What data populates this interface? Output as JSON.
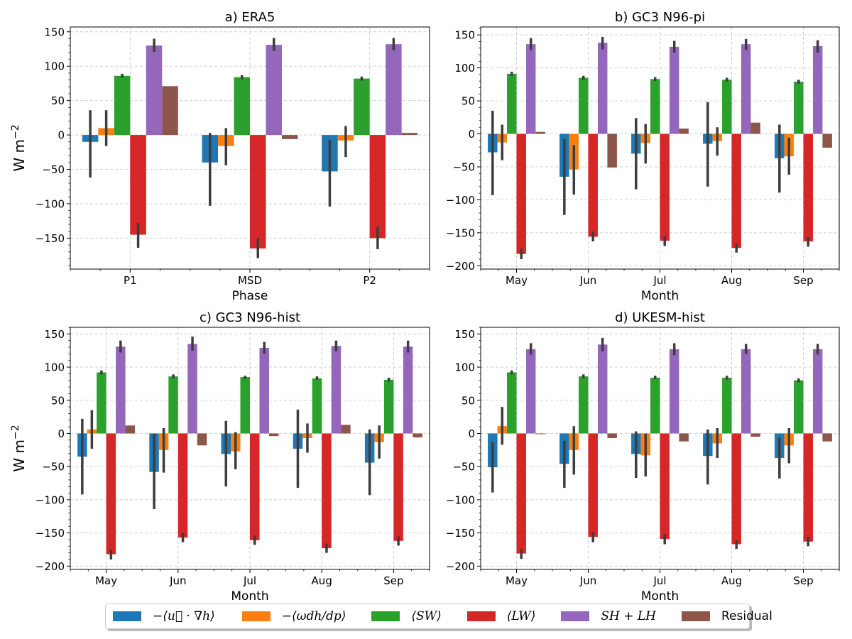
{
  "chart_data": [
    {
      "type": "bar",
      "title": "a) ERA5",
      "xlabel": "Phase",
      "ylabel": "W m",
      "ylabel_exp": "−2",
      "ylim": [
        -195,
        157
      ],
      "yticks": [
        -150,
        -100,
        -50,
        0,
        50,
        100,
        150
      ],
      "yminor_step": 10,
      "categories": [
        "P1",
        "MSD",
        "P2"
      ],
      "series": [
        {
          "name": "−⟨u⃗ · ∇h⟩",
          "values": [
            -10,
            -40,
            -53
          ],
          "err_low": [
            -62,
            -103,
            -104
          ],
          "err_high": [
            36,
            3,
            -7
          ]
        },
        {
          "name": "−⟨ωdh/dp⟩",
          "values": [
            10,
            -16,
            -8
          ],
          "err_low": [
            -16,
            -44,
            -32
          ],
          "err_high": [
            36,
            10,
            13
          ]
        },
        {
          "name": "⟨SW⟩",
          "values": [
            86,
            84,
            82
          ],
          "err_low": [
            83,
            81,
            79
          ],
          "err_high": [
            89,
            87,
            85
          ]
        },
        {
          "name": "⟨LW⟩",
          "values": [
            -145,
            -165,
            -150
          ],
          "err_low": [
            -164,
            -179,
            -166
          ],
          "err_high": [
            -128,
            -150,
            -133
          ]
        },
        {
          "name": "SH + LH",
          "values": [
            130,
            131,
            132
          ],
          "err_low": [
            121,
            122,
            123
          ],
          "err_high": [
            140,
            141,
            141
          ]
        },
        {
          "name": "Residual",
          "values": [
            71,
            -6,
            3
          ],
          "err_low": [
            null,
            null,
            null
          ],
          "err_high": [
            null,
            null,
            null
          ]
        }
      ]
    },
    {
      "type": "bar",
      "title": "b) GC3 N96-pi",
      "xlabel": "Month",
      "ylabel": "",
      "ylabel_exp": "",
      "ylim": [
        -205,
        162
      ],
      "yticks": [
        -200,
        -150,
        -100,
        -50,
        0,
        50,
        100,
        150
      ],
      "yminor_step": 10,
      "categories": [
        "May",
        "Jun",
        "Jul",
        "Aug",
        "Sep"
      ],
      "series": [
        {
          "name": "−⟨u⃗ · ∇h⟩",
          "values": [
            -28,
            -65,
            -30,
            -15,
            -37
          ],
          "err_low": [
            -93,
            -123,
            -84,
            -80,
            -89
          ],
          "err_high": [
            35,
            -8,
            24,
            48,
            14
          ]
        },
        {
          "name": "−⟨ωdh/dp⟩",
          "values": [
            -13,
            -54,
            -14,
            -11,
            -34
          ],
          "err_low": [
            -40,
            -92,
            -45,
            -33,
            -62
          ],
          "err_high": [
            14,
            -17,
            15,
            10,
            -6
          ]
        },
        {
          "name": "⟨SW⟩",
          "values": [
            91,
            85,
            83,
            82,
            79
          ],
          "err_low": [
            88,
            82,
            80,
            79,
            76
          ],
          "err_high": [
            94,
            88,
            86,
            85,
            82
          ]
        },
        {
          "name": "⟨LW⟩",
          "values": [
            -182,
            -156,
            -162,
            -173,
            -163
          ],
          "err_low": [
            -190,
            -163,
            -170,
            -180,
            -171
          ],
          "err_high": [
            -174,
            -148,
            -155,
            -166,
            -156
          ]
        },
        {
          "name": "SH + LH",
          "values": [
            136,
            138,
            132,
            136,
            133
          ],
          "err_low": [
            127,
            128,
            123,
            127,
            123
          ],
          "err_high": [
            145,
            147,
            141,
            144,
            142
          ]
        },
        {
          "name": "Residual",
          "values": [
            3,
            -51,
            8,
            17,
            -21
          ],
          "err_low": [
            null,
            null,
            null,
            null,
            null
          ],
          "err_high": [
            null,
            null,
            null,
            null,
            null
          ]
        }
      ]
    },
    {
      "type": "bar",
      "title": "c) GC3 N96-hist",
      "xlabel": "Month",
      "ylabel": "W m",
      "ylabel_exp": "−2",
      "ylim": [
        -205,
        160
      ],
      "yticks": [
        -200,
        -150,
        -100,
        -50,
        0,
        50,
        100,
        150
      ],
      "yminor_step": 10,
      "categories": [
        "May",
        "Jun",
        "Jul",
        "Aug",
        "Sep"
      ],
      "series": [
        {
          "name": "−⟨u⃗ · ∇h⟩",
          "values": [
            -35,
            -58,
            -31,
            -23,
            -44
          ],
          "err_low": [
            -92,
            -114,
            -80,
            -82,
            -93
          ],
          "err_high": [
            22,
            0,
            19,
            36,
            6
          ]
        },
        {
          "name": "−⟨ωdh/dp⟩",
          "values": [
            6,
            -25,
            -27,
            -7,
            -13
          ],
          "err_low": [
            -23,
            -59,
            -54,
            -29,
            -38
          ],
          "err_high": [
            35,
            8,
            2,
            15,
            12
          ]
        },
        {
          "name": "⟨SW⟩",
          "values": [
            92,
            86,
            85,
            83,
            81
          ],
          "err_low": [
            89,
            83,
            82,
            81,
            78
          ],
          "err_high": [
            95,
            89,
            87,
            86,
            84
          ]
        },
        {
          "name": "⟨LW⟩",
          "values": [
            -182,
            -157,
            -161,
            -173,
            -162
          ],
          "err_low": [
            -190,
            -164,
            -168,
            -180,
            -169
          ],
          "err_high": [
            -175,
            -150,
            -154,
            -166,
            -155
          ]
        },
        {
          "name": "SH + LH",
          "values": [
            131,
            135,
            129,
            132,
            131
          ],
          "err_low": [
            122,
            125,
            120,
            124,
            122
          ],
          "err_high": [
            140,
            146,
            138,
            140,
            140
          ]
        },
        {
          "name": "Residual",
          "values": [
            12,
            -18,
            -4,
            13,
            -6
          ],
          "err_low": [
            null,
            null,
            null,
            null,
            null
          ],
          "err_high": [
            null,
            null,
            null,
            null,
            null
          ]
        }
      ]
    },
    {
      "type": "bar",
      "title": "d) UKESM-hist",
      "xlabel": "Month",
      "ylabel": "",
      "ylabel_exp": "",
      "ylim": [
        -205,
        160
      ],
      "yticks": [
        -200,
        -150,
        -100,
        -50,
        0,
        50,
        100,
        150
      ],
      "yminor_step": 10,
      "categories": [
        "May",
        "Jun",
        "Jul",
        "Aug",
        "Sep"
      ],
      "series": [
        {
          "name": "−⟨u⃗ · ∇h⟩",
          "values": [
            -51,
            -46,
            -31,
            -34,
            -37
          ],
          "err_low": [
            -89,
            -82,
            -67,
            -77,
            -68
          ],
          "err_high": [
            -13,
            -11,
            3,
            6,
            -6
          ]
        },
        {
          "name": "−⟨ωdh/dp⟩",
          "values": [
            11,
            -25,
            -33,
            -15,
            -18
          ],
          "err_low": [
            -17,
            -62,
            -65,
            -37,
            -45
          ],
          "err_high": [
            40,
            11,
            0,
            8,
            8
          ]
        },
        {
          "name": "⟨SW⟩",
          "values": [
            92,
            86,
            84,
            84,
            80
          ],
          "err_low": [
            89,
            83,
            82,
            81,
            77
          ],
          "err_high": [
            95,
            89,
            87,
            87,
            83
          ]
        },
        {
          "name": "⟨LW⟩",
          "values": [
            -181,
            -156,
            -159,
            -167,
            -163
          ],
          "err_low": [
            -189,
            -164,
            -167,
            -174,
            -170
          ],
          "err_high": [
            -174,
            -149,
            -152,
            -161,
            -156
          ]
        },
        {
          "name": "SH + LH",
          "values": [
            127,
            134,
            127,
            127,
            127
          ],
          "err_low": [
            119,
            124,
            118,
            120,
            119
          ],
          "err_high": [
            136,
            144,
            136,
            135,
            135
          ]
        },
        {
          "name": "Residual",
          "values": [
            -1,
            -7,
            -12,
            -5,
            -12
          ],
          "err_low": [
            null,
            null,
            null,
            null,
            null
          ],
          "err_high": [
            null,
            null,
            null,
            null,
            null
          ]
        }
      ]
    }
  ],
  "colors": [
    "#1f77b4",
    "#ff7f0e",
    "#2ca02c",
    "#d62728",
    "#9467bd",
    "#8c564b"
  ],
  "legend": {
    "placement": "bottom-center",
    "items": [
      {
        "label": "−⟨u⃗ · ∇h⟩",
        "color": "#1f77b4"
      },
      {
        "label": "−⟨ωdh/dp⟩",
        "color": "#ff7f0e"
      },
      {
        "label": "⟨SW⟩",
        "color": "#2ca02c"
      },
      {
        "label": "⟨LW⟩",
        "color": "#d62728"
      },
      {
        "label": "SH + LH",
        "color": "#9467bd"
      },
      {
        "label": "Residual",
        "color": "#8c564b"
      }
    ]
  }
}
